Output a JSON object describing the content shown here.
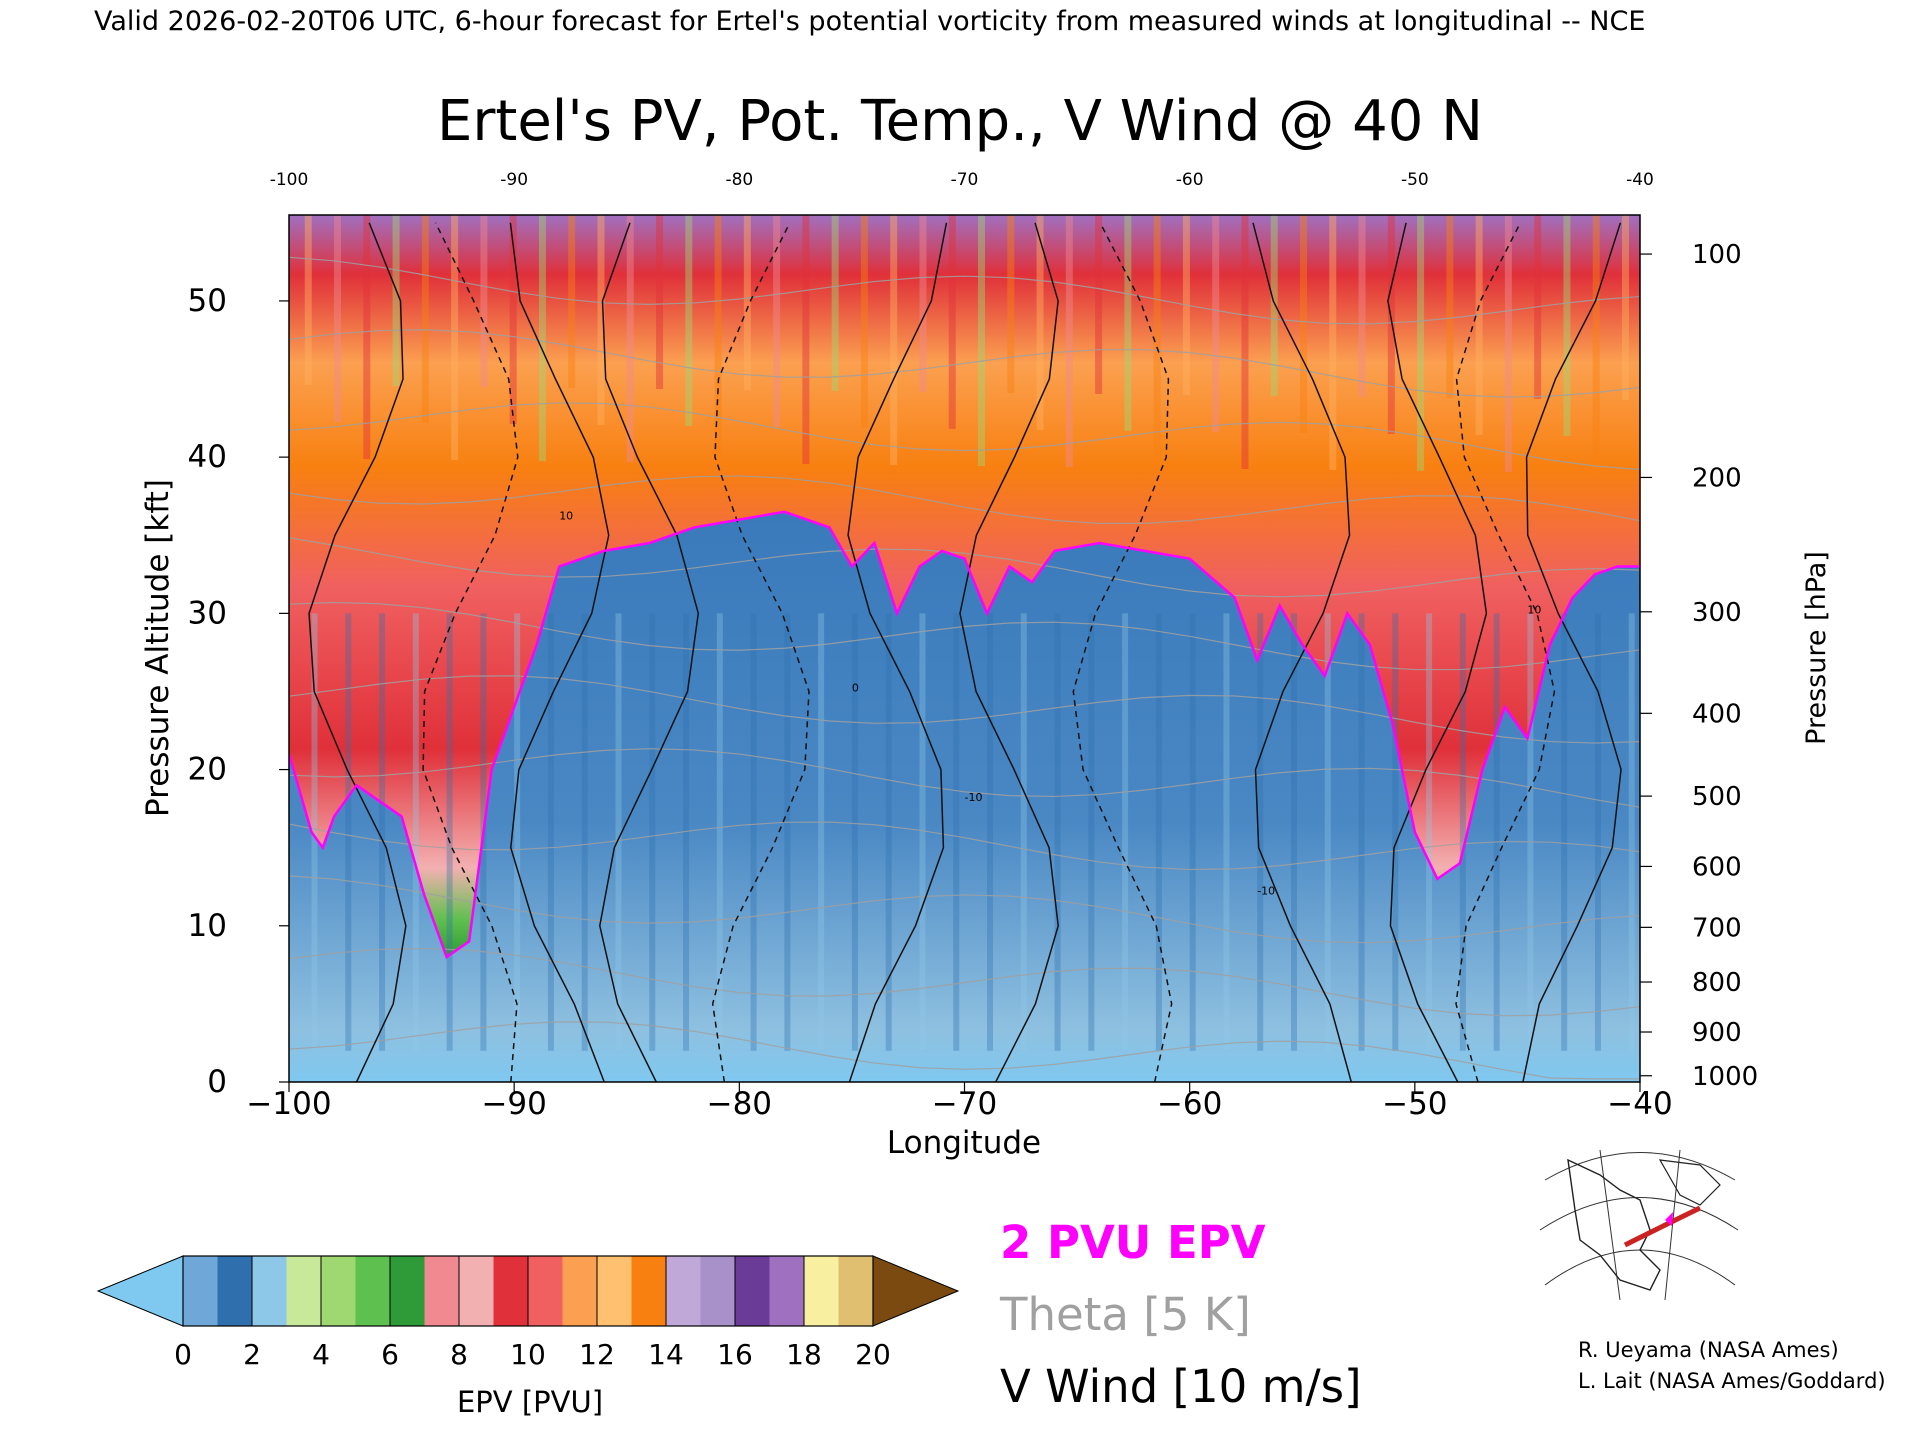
{
  "header": {
    "valid_line": "Valid 2026-02-20T06 UTC, 6-hour forecast for Ertel's potential vorticity from measured winds at longitudinal -- NCE"
  },
  "chart_data": {
    "type": "heatmap",
    "title": "Ertel's PV, Pot. Temp., V Wind @ 40 N",
    "xlabel": "Longitude",
    "ylabel_left": "Pressure Altitude [kft]",
    "ylabel_right": "Pressure [hPa]",
    "xlim": [
      -100,
      -40
    ],
    "ylim_kft": [
      0,
      55.5
    ],
    "x_ticks": [
      -100,
      -90,
      -80,
      -70,
      -60,
      -50,
      -40
    ],
    "x_tick_labels": [
      "−100",
      "−90",
      "−80",
      "−70",
      "−60",
      "−50",
      "−40"
    ],
    "x_top_tick_labels": [
      "-100",
      "-90",
      "-80",
      "-70",
      "-60",
      "-50",
      "-40"
    ],
    "y_left_ticks": [
      0,
      10,
      20,
      30,
      40,
      50
    ],
    "y_left_tick_labels": [
      "0",
      "10",
      "20",
      "30",
      "40",
      "50"
    ],
    "y_right_ticks": [
      {
        "hPa": "100",
        "kft": 53.0
      },
      {
        "hPa": "200",
        "kft": 38.7
      },
      {
        "hPa": "300",
        "kft": 30.1
      },
      {
        "hPa": "400",
        "kft": 23.6
      },
      {
        "hPa": "500",
        "kft": 18.3
      },
      {
        "hPa": "600",
        "kft": 13.8
      },
      {
        "hPa": "700",
        "kft": 9.9
      },
      {
        "hPa": "800",
        "kft": 6.4
      },
      {
        "hPa": "900",
        "kft": 3.2
      },
      {
        "hPa": "1000",
        "kft": 0.4
      }
    ],
    "epv_field": {
      "description_units": "PVU",
      "tropopause_2pvu_kft": [
        [
          -100,
          21
        ],
        [
          -99,
          16
        ],
        [
          -98.5,
          15
        ],
        [
          -98,
          17
        ],
        [
          -97,
          19
        ],
        [
          -96,
          18
        ],
        [
          -95,
          17
        ],
        [
          -94,
          12
        ],
        [
          -93,
          8
        ],
        [
          -92,
          9
        ],
        [
          -91,
          20
        ],
        [
          -90,
          24
        ],
        [
          -89,
          28
        ],
        [
          -88,
          33
        ],
        [
          -86,
          34
        ],
        [
          -84,
          34.5
        ],
        [
          -82,
          35.5
        ],
        [
          -80,
          36
        ],
        [
          -78,
          36.5
        ],
        [
          -76,
          35.5
        ],
        [
          -75,
          33
        ],
        [
          -74,
          34.5
        ],
        [
          -73,
          30
        ],
        [
          -72,
          33
        ],
        [
          -71,
          34
        ],
        [
          -70,
          33.5
        ],
        [
          -69,
          30
        ],
        [
          -68,
          33
        ],
        [
          -67,
          32
        ],
        [
          -66,
          34
        ],
        [
          -64,
          34.5
        ],
        [
          -62,
          34
        ],
        [
          -60,
          33.5
        ],
        [
          -58,
          31
        ],
        [
          -57,
          27
        ],
        [
          -56,
          30.5
        ],
        [
          -55,
          28
        ],
        [
          -54,
          26
        ],
        [
          -53,
          30
        ],
        [
          -52,
          28
        ],
        [
          -51,
          23
        ],
        [
          -50,
          16
        ],
        [
          -49,
          13
        ],
        [
          -48,
          14
        ],
        [
          -47,
          20
        ],
        [
          -46,
          24
        ],
        [
          -45,
          22
        ],
        [
          -44,
          28
        ],
        [
          -43,
          31
        ],
        [
          -42,
          32.5
        ],
        [
          -41,
          33
        ],
        [
          -40,
          33
        ]
      ],
      "colorbar_bounds": [
        0,
        1,
        2,
        3,
        4,
        5,
        6,
        7,
        8,
        9,
        10,
        11,
        12,
        13,
        14,
        15,
        16,
        17,
        18,
        19,
        20
      ],
      "colorbar_colors": [
        "#6fa8d8",
        "#2f6fae",
        "#8ec8e8",
        "#c8e89a",
        "#9fd870",
        "#5ec04e",
        "#2f9a38",
        "#f08a90",
        "#f3b0b0",
        "#e0303a",
        "#f06060",
        "#fba050",
        "#ffc070",
        "#f88010",
        "#c0a8d8",
        "#a890c8",
        "#6a3c98",
        "#a070c0",
        "#f8f0a0",
        "#e0c070"
      ],
      "under_color": "#7fc8f0",
      "over_color": "#7a4a10"
    },
    "theta_levels_K": [
      290,
      300,
      310,
      320,
      330,
      340,
      350,
      360,
      380,
      400,
      420,
      440
    ],
    "v_wind_contours": [
      {
        "label": "10",
        "x": -88,
        "y": 36
      },
      {
        "label": "-10",
        "x": -70,
        "y": 18
      },
      {
        "label": "0",
        "x": -75,
        "y": 25
      },
      {
        "label": "10",
        "x": -45,
        "y": 30
      },
      {
        "label": "-10",
        "x": -57,
        "y": 12
      }
    ],
    "colorbar": {
      "label": "EPV [PVU]",
      "tick_labels": [
        "0",
        "2",
        "4",
        "6",
        "8",
        "10",
        "12",
        "14",
        "16",
        "18",
        "20"
      ]
    },
    "legend": {
      "placement": "bottom-center",
      "items": [
        {
          "label": "2 PVU EPV",
          "color": "#ff00ff"
        },
        {
          "label": "Theta [5 K]",
          "color": "#a0a0a0"
        },
        {
          "label": "V Wind [10 m/s]",
          "color": "#000000"
        }
      ]
    },
    "credits": [
      "R. Ueyama (NASA Ames)",
      "L. Lait (NASA Ames/Goddard)"
    ]
  }
}
